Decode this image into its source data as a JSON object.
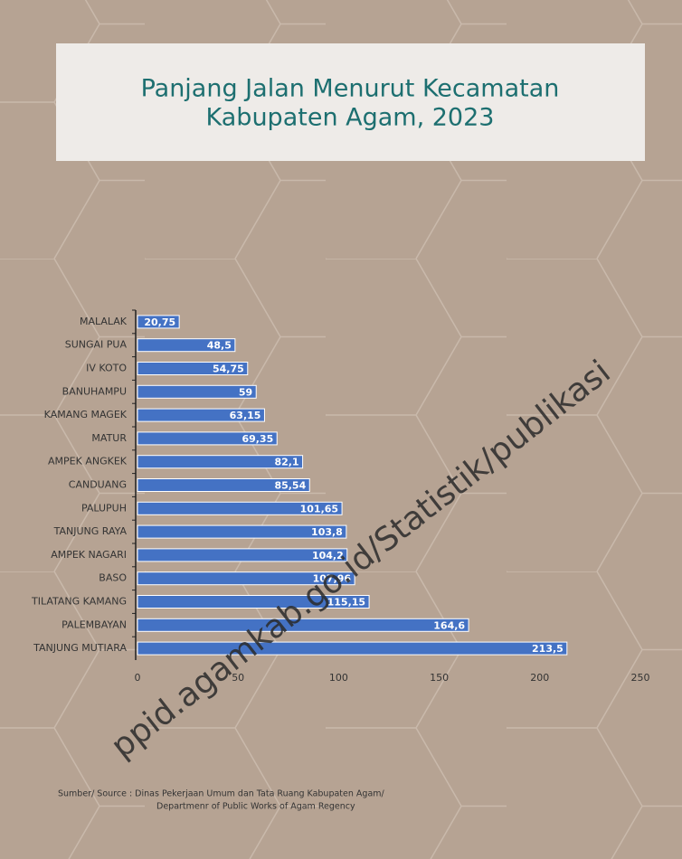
{
  "chart_data": {
    "type": "bar",
    "orientation": "horizontal",
    "title": [
      "Panjang Jalan Menurut Kecamatan",
      "Kabupaten Agam, 2023"
    ],
    "categories": [
      "MALALAK",
      "SUNGAI PUA",
      "IV KOTO",
      "BANUHAMPU",
      "KAMANG MAGEK",
      "MATUR",
      "AMPEK ANGKEK",
      "CANDUANG",
      "PALUPUH",
      "TANJUNG RAYA",
      "AMPEK NAGARI",
      "BASO",
      "TILATANG KAMANG",
      "PALEMBAYAN",
      "TANJUNG MUTIARA"
    ],
    "values": [
      20.75,
      48.5,
      54.75,
      59,
      63.15,
      69.35,
      82.1,
      85.54,
      101.65,
      103.8,
      104.2,
      107.96,
      115.15,
      164.6,
      213.5
    ],
    "value_labels": [
      "20,75",
      "48,5",
      "54,75",
      "59",
      "63,15",
      "69,35",
      "82,1",
      "85,54",
      "101,65",
      "103,8",
      "104,2",
      "107,96",
      "115,15",
      "164,6",
      "213,5"
    ],
    "color": "#4472c4",
    "xlim": [
      0,
      250
    ],
    "xticks": [
      0,
      50,
      100,
      150,
      200,
      250
    ],
    "source": [
      "Sumber/ Source : Dinas Pekerjaan Umum dan Tata Ruang Kabupaten Agam/",
      "Departmenr of Public Works of Agam Regency"
    ],
    "watermark": "ppid.agamkab.go.id/Statistik/publikasi"
  }
}
